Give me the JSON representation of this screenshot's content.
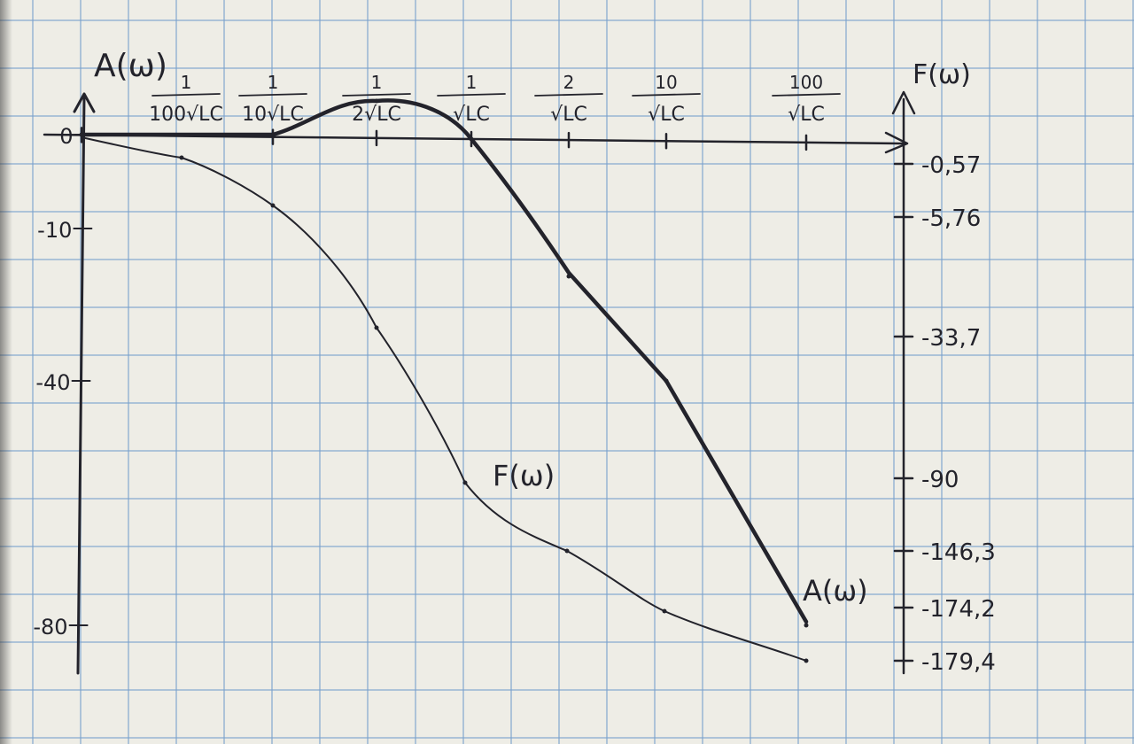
{
  "chart_data": {
    "type": "line",
    "y_left_label": "A(ω)",
    "y_right_label": "F(ω)",
    "left_ticks": [
      {
        "label": "0",
        "value": 0
      },
      {
        "label": "-10",
        "value": -10
      },
      {
        "label": "-40",
        "value": -40
      },
      {
        "label": "-80",
        "value": -80
      }
    ],
    "right_ticks": [
      "-0,57",
      "-5,76",
      "-33,7",
      "-90",
      "-146,3",
      "-174,2",
      "-179,4"
    ],
    "x_ticks": [
      {
        "num": "1",
        "den": "100√LC"
      },
      {
        "num": "1",
        "den": "10√LC"
      },
      {
        "num": "1",
        "den": "2√LC"
      },
      {
        "num": "1",
        "den": "√LC"
      },
      {
        "num": "2",
        "den": "√LC"
      },
      {
        "num": "10",
        "den": "√LC"
      },
      {
        "num": "100",
        "den": "√LC"
      }
    ],
    "series": [
      {
        "name": "A(ω)",
        "x_tick_index": [
          0,
          1,
          2,
          3,
          4,
          5,
          6
        ],
        "values": [
          0,
          0,
          2,
          0,
          -13,
          -40,
          -80
        ]
      },
      {
        "name": "F(ω)",
        "x_tick_index": [
          0,
          1,
          2,
          3,
          4,
          5,
          6
        ],
        "values": [
          -0.57,
          -5.76,
          -33.7,
          -90,
          -146.3,
          -174.2,
          -179.4
        ]
      }
    ],
    "grid": true
  }
}
